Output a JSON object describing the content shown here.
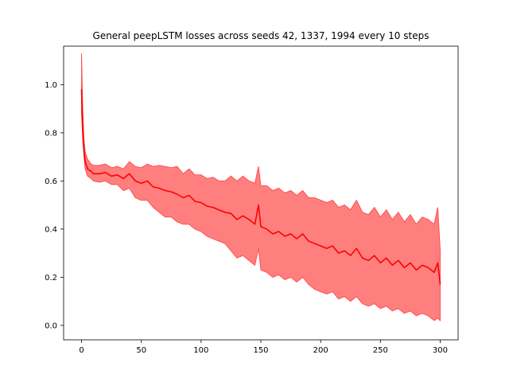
{
  "chart_data": {
    "type": "line",
    "title": "General peepLSTM losses across seeds 42, 1337, 1994 every 10 steps",
    "xlabel": "",
    "ylabel": "",
    "xlim": [
      -15,
      315
    ],
    "ylim": [
      -0.06,
      1.16
    ],
    "xticks": [
      0,
      50,
      100,
      150,
      200,
      250,
      300
    ],
    "yticks": [
      0.0,
      0.2,
      0.4,
      0.6,
      0.8,
      1.0
    ],
    "grid": false,
    "colors": {
      "line": "#ff0000",
      "band": "#ff7f7f",
      "band_edge": "#ff5050"
    },
    "series": [
      {
        "x": [
          0,
          1,
          2,
          3,
          5,
          8,
          10,
          15,
          20,
          25,
          30,
          35,
          40,
          45,
          50,
          55,
          60,
          65,
          70,
          75,
          80,
          85,
          90,
          95,
          100,
          105,
          110,
          115,
          120,
          125,
          130,
          135,
          140,
          145,
          148,
          150,
          155,
          160,
          165,
          170,
          175,
          180,
          185,
          190,
          195,
          200,
          205,
          210,
          215,
          220,
          225,
          230,
          235,
          240,
          245,
          250,
          255,
          260,
          265,
          270,
          275,
          280,
          285,
          290,
          295,
          298,
          300
        ],
        "mean": [
          0.98,
          0.82,
          0.73,
          0.68,
          0.65,
          0.64,
          0.63,
          0.63,
          0.635,
          0.62,
          0.625,
          0.61,
          0.63,
          0.6,
          0.59,
          0.6,
          0.575,
          0.57,
          0.56,
          0.555,
          0.545,
          0.53,
          0.54,
          0.515,
          0.51,
          0.495,
          0.49,
          0.48,
          0.47,
          0.465,
          0.44,
          0.455,
          0.44,
          0.42,
          0.5,
          0.41,
          0.4,
          0.38,
          0.39,
          0.37,
          0.38,
          0.36,
          0.38,
          0.35,
          0.34,
          0.33,
          0.32,
          0.33,
          0.3,
          0.31,
          0.29,
          0.32,
          0.28,
          0.27,
          0.29,
          0.26,
          0.28,
          0.25,
          0.27,
          0.24,
          0.26,
          0.23,
          0.25,
          0.24,
          0.22,
          0.26,
          0.17
        ],
        "upper": [
          1.13,
          0.9,
          0.77,
          0.72,
          0.69,
          0.67,
          0.665,
          0.665,
          0.67,
          0.655,
          0.66,
          0.65,
          0.68,
          0.66,
          0.655,
          0.67,
          0.66,
          0.665,
          0.66,
          0.655,
          0.66,
          0.63,
          0.65,
          0.625,
          0.625,
          0.61,
          0.615,
          0.6,
          0.6,
          0.62,
          0.6,
          0.62,
          0.6,
          0.59,
          0.66,
          0.58,
          0.58,
          0.56,
          0.57,
          0.55,
          0.56,
          0.54,
          0.56,
          0.53,
          0.53,
          0.52,
          0.51,
          0.52,
          0.49,
          0.5,
          0.48,
          0.52,
          0.47,
          0.46,
          0.49,
          0.45,
          0.48,
          0.44,
          0.47,
          0.43,
          0.46,
          0.42,
          0.45,
          0.44,
          0.42,
          0.49,
          0.31
        ],
        "lower": [
          0.88,
          0.77,
          0.7,
          0.65,
          0.62,
          0.61,
          0.6,
          0.595,
          0.6,
          0.585,
          0.585,
          0.56,
          0.57,
          0.53,
          0.52,
          0.52,
          0.49,
          0.47,
          0.45,
          0.45,
          0.43,
          0.42,
          0.42,
          0.4,
          0.39,
          0.37,
          0.36,
          0.35,
          0.34,
          0.31,
          0.28,
          0.29,
          0.27,
          0.25,
          0.32,
          0.23,
          0.22,
          0.2,
          0.21,
          0.19,
          0.2,
          0.18,
          0.2,
          0.17,
          0.15,
          0.14,
          0.13,
          0.14,
          0.11,
          0.12,
          0.1,
          0.12,
          0.09,
          0.08,
          0.09,
          0.07,
          0.08,
          0.06,
          0.07,
          0.05,
          0.06,
          0.04,
          0.05,
          0.04,
          0.02,
          0.03,
          0.02
        ]
      }
    ]
  }
}
